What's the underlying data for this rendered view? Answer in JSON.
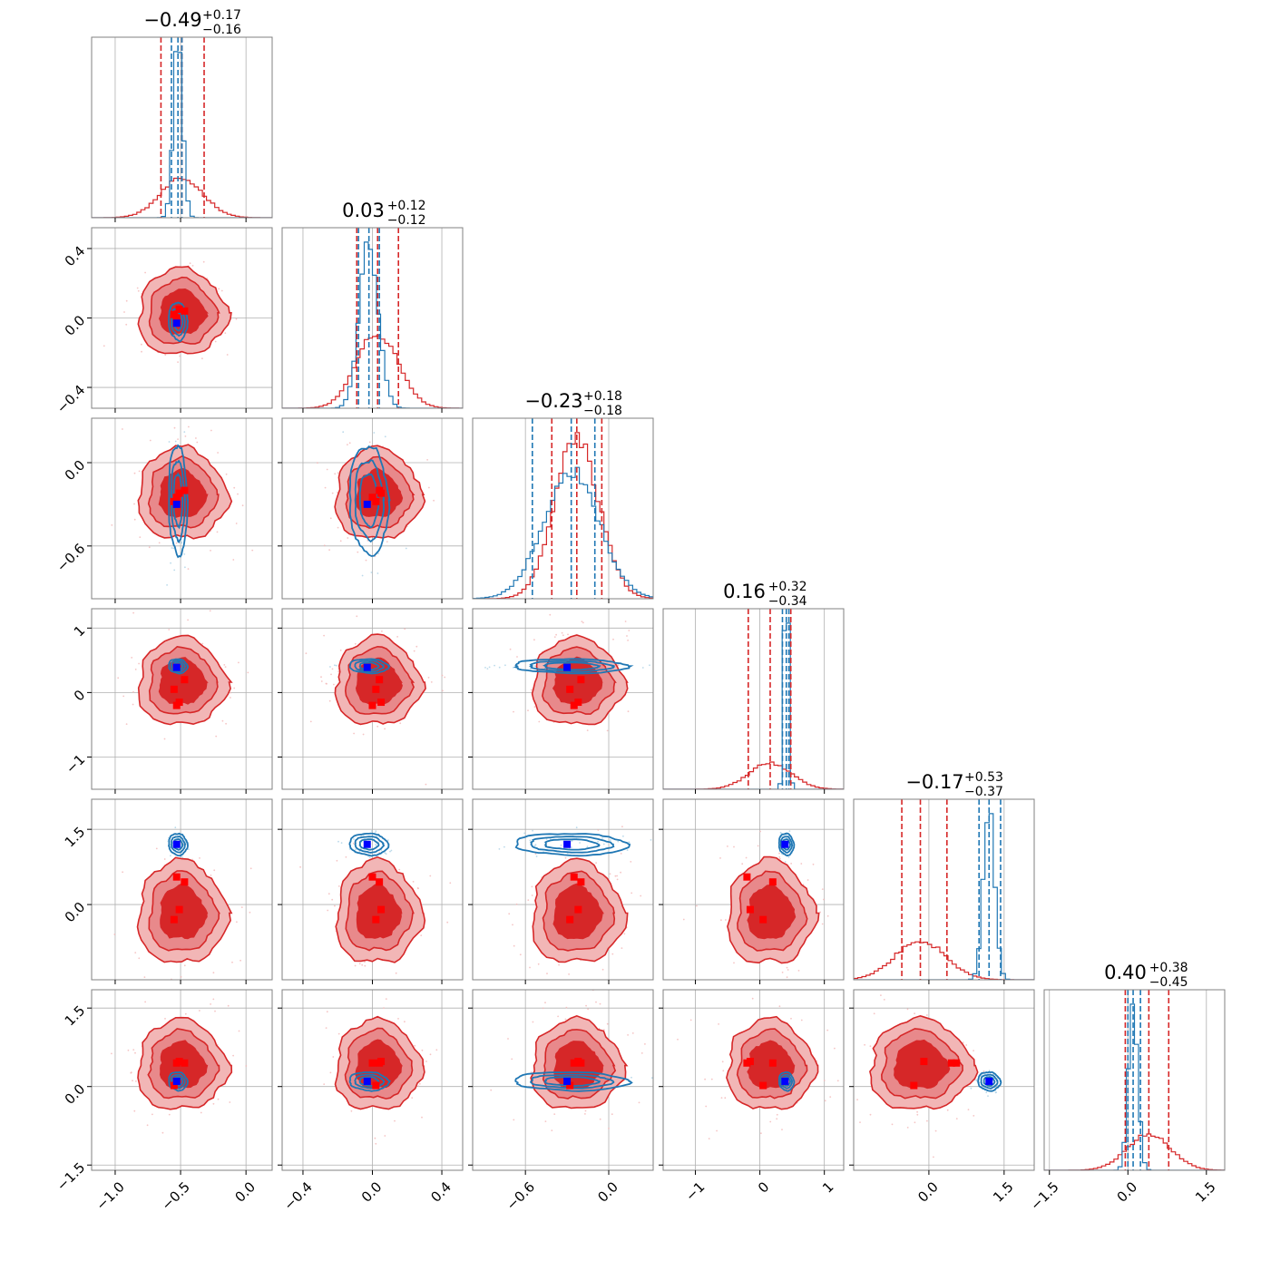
{
  "colors": {
    "reference": "#d62728",
    "reference_light": "#f2b6b6",
    "reference_mid": "#e8898b",
    "comparison": "#1f77b4",
    "truth": "#0000ff",
    "highlight": "#ff0000",
    "grid": "#b0b0b0"
  },
  "chart_data": {
    "type": "corner",
    "grid": true,
    "params": [
      {
        "title": {
          "median": "−0.49",
          "plus": "+0.17",
          "minus": "−0.16"
        },
        "range": [
          -1.18,
          0.2
        ],
        "ticks": [
          -1.0,
          -0.5,
          0.0
        ],
        "tick_labels": [
          "−1.0",
          "−0.5",
          "0.0"
        ],
        "ref": {
          "mean": -0.49,
          "sd": 0.165,
          "q": [
            -0.65,
            -0.49,
            -0.32
          ]
        },
        "cmp": {
          "mean": -0.52,
          "sd": 0.035,
          "q": [
            -0.57,
            -0.52,
            -0.49
          ]
        },
        "truth": -0.53,
        "highlights": [
          -0.47,
          -0.53,
          -0.51,
          -0.55
        ]
      },
      {
        "title": {
          "median": "0.03",
          "plus": "+0.12",
          "minus": "−0.12"
        },
        "range": [
          -0.52,
          0.52
        ],
        "ticks": [
          -0.4,
          0.0,
          0.4
        ],
        "tick_labels": [
          "−0.4",
          "0.0",
          "0.4"
        ],
        "ref": {
          "mean": 0.03,
          "sd": 0.12,
          "q": [
            -0.09,
            0.03,
            0.15
          ]
        },
        "cmp": {
          "mean": -0.02,
          "sd": 0.055,
          "q": [
            -0.08,
            -0.02,
            0.04
          ]
        },
        "truth": -0.03,
        "highlights": [
          0.04,
          0.0,
          0.05,
          0.02
        ]
      },
      {
        "title": {
          "median": "−0.23",
          "plus": "+0.18",
          "minus": "−0.18"
        },
        "range": [
          -0.98,
          0.32
        ],
        "ticks": [
          -0.6,
          0.0
        ],
        "tick_labels": [
          "−0.6",
          "0.0"
        ],
        "ref": {
          "mean": -0.23,
          "sd": 0.16,
          "q": [
            -0.41,
            -0.23,
            -0.05
          ]
        },
        "cmp": {
          "mean": -0.27,
          "sd": 0.2,
          "q": [
            -0.55,
            -0.27,
            -0.1
          ]
        },
        "truth": -0.3,
        "highlights": [
          -0.2,
          -0.25,
          -0.22,
          -0.28
        ]
      },
      {
        "title": {
          "median": "0.16",
          "plus": "+0.32",
          "minus": "−0.34"
        },
        "range": [
          -1.5,
          1.3
        ],
        "ticks": [
          -1,
          0,
          1
        ],
        "tick_labels": [
          "−1",
          "0",
          "1"
        ],
        "ref": {
          "mean": 0.16,
          "sd": 0.33,
          "q": [
            -0.18,
            0.16,
            0.48
          ]
        },
        "cmp": {
          "mean": 0.41,
          "sd": 0.035,
          "q": [
            0.35,
            0.41,
            0.45
          ]
        },
        "truth": 0.39,
        "highlights": [
          0.2,
          -0.2,
          -0.15,
          0.05
        ]
      },
      {
        "title": {
          "median": "−0.17",
          "plus": "+0.53",
          "minus": "−0.37"
        },
        "range": [
          -1.5,
          2.1
        ],
        "ticks": [
          0.0,
          1.5
        ],
        "tick_labels": [
          "0.0",
          "1.5"
        ],
        "ref": {
          "mean": -0.17,
          "sd": 0.5,
          "q": [
            -0.54,
            -0.17,
            0.36
          ]
        },
        "cmp": {
          "mean": 1.2,
          "sd": 0.11,
          "q": [
            1.0,
            1.2,
            1.43
          ]
        },
        "truth": 1.2,
        "highlights": [
          0.45,
          0.55,
          -0.1,
          -0.3
        ]
      },
      {
        "title": {
          "median": "0.40",
          "plus": "+0.38",
          "minus": "−0.45"
        },
        "range": [
          -1.6,
          1.85
        ],
        "ticks": [
          -1.5,
          0.0,
          1.5
        ],
        "tick_labels": [
          "−1.5",
          "0.0",
          "1.5"
        ],
        "ref": {
          "mean": 0.4,
          "sd": 0.42,
          "q": [
            -0.05,
            0.4,
            0.78
          ]
        },
        "cmp": {
          "mean": 0.1,
          "sd": 0.09,
          "q": [
            0.0,
            0.1,
            0.24
          ]
        },
        "truth": 0.1,
        "highlights": [
          0.45,
          0.45,
          0.48,
          0.02
        ]
      }
    ]
  }
}
